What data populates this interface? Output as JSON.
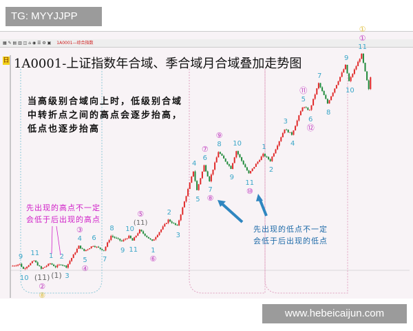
{
  "watermark": "TG: MYYJJPP",
  "site": "www.hebeicaijun.com",
  "toolbar": {
    "index_name": "1A0001—综合指数"
  },
  "badge": "日",
  "chart_data": {
    "type": "candlestick",
    "title": "1A0001-上证指数年合域、季合域月合域叠加走势图",
    "colors": {
      "up": "#e02828",
      "down": "#1f8a3a",
      "wave_label": "#3aa6c8",
      "circled_label": "#c03cc0",
      "paren_label": "#666666",
      "yearly_label": "#e0c040"
    },
    "points": [
      {
        "bar": 0,
        "value": 2034,
        "kind": "start"
      },
      {
        "bar": 5,
        "value": 2060,
        "kind": "high",
        "label": "9"
      },
      {
        "bar": 7,
        "value": 2000,
        "kind": "low",
        "label": "10"
      },
      {
        "bar": 13,
        "value": 2102,
        "kind": "high",
        "label": "11"
      },
      {
        "bar": 17,
        "value": 2000,
        "kind": "low",
        "sub": [
          "(11)",
          "②",
          "⑧"
        ]
      },
      {
        "bar": 22,
        "value": 2068,
        "kind": "high",
        "label": "1"
      },
      {
        "bar": 25,
        "value": 2026,
        "kind": "low",
        "sub": [
          "(1)"
        ]
      },
      {
        "bar": 28,
        "value": 2060,
        "kind": "high",
        "label": "2"
      },
      {
        "bar": 31,
        "value": 2026,
        "kind": "low",
        "label": "3"
      },
      {
        "bar": 38,
        "value": 2281,
        "kind": "high",
        "label": "4",
        "sub": [
          "③"
        ]
      },
      {
        "bar": 41,
        "value": 2221,
        "kind": "low",
        "label": "5",
        "sub": [
          "④"
        ]
      },
      {
        "bar": 46,
        "value": 2289,
        "kind": "high",
        "label": "6"
      },
      {
        "bar": 52,
        "value": 2230,
        "kind": "low",
        "label": "7"
      },
      {
        "bar": 56,
        "value": 2408,
        "kind": "high",
        "label": "8"
      },
      {
        "bar": 62,
        "value": 2340,
        "kind": "low",
        "label": "9"
      },
      {
        "bar": 66,
        "value": 2400,
        "kind": "high",
        "label": "10"
      },
      {
        "bar": 68,
        "value": 2349,
        "kind": "low",
        "label": "11"
      },
      {
        "bar": 72,
        "value": 2476,
        "kind": "high",
        "label": "(11)",
        "sub": [
          "⑤"
        ]
      },
      {
        "bar": 79,
        "value": 2340,
        "kind": "low",
        "label": "1",
        "sub": [
          "⑥"
        ]
      },
      {
        "bar": 88,
        "value": 2604,
        "kind": "high",
        "label": "2"
      },
      {
        "bar": 93,
        "value": 2527,
        "kind": "low",
        "label": "3"
      },
      {
        "bar": 102,
        "value": 3207,
        "kind": "high",
        "label": "4"
      },
      {
        "bar": 104,
        "value": 2969,
        "kind": "low",
        "label": "5"
      },
      {
        "bar": 108,
        "value": 3275,
        "kind": "high",
        "label": "6",
        "sub": [
          "⑦"
        ]
      },
      {
        "bar": 111,
        "value": 3088,
        "kind": "low",
        "label": "7",
        "sub": [
          "⑧"
        ]
      },
      {
        "bar": 116,
        "value": 3445,
        "kind": "high",
        "label": "8",
        "sub": [
          "⑨"
        ]
      },
      {
        "bar": 123,
        "value": 3241,
        "kind": "low",
        "label": "9"
      },
      {
        "bar": 126,
        "value": 3454,
        "kind": "high",
        "label": "10"
      },
      {
        "bar": 133,
        "value": 3173,
        "kind": "low",
        "label": "11",
        "sub": [
          "⑩"
        ]
      },
      {
        "bar": 141,
        "value": 3411,
        "kind": "high",
        "label": "1"
      },
      {
        "bar": 145,
        "value": 3335,
        "kind": "low",
        "label": "2"
      },
      {
        "bar": 153,
        "value": 3726,
        "kind": "high",
        "label": "3"
      },
      {
        "bar": 157,
        "value": 3658,
        "kind": "low",
        "label": "4"
      },
      {
        "bar": 163,
        "value": 3998,
        "kind": "high",
        "label": "5",
        "sub": [
          "⑪"
        ]
      },
      {
        "bar": 167,
        "value": 3955,
        "kind": "low",
        "label": "6",
        "sub": [
          "⑫"
        ]
      },
      {
        "bar": 172,
        "value": 4287,
        "kind": "high",
        "label": "7"
      },
      {
        "bar": 177,
        "value": 4040,
        "kind": "low",
        "label": "8"
      },
      {
        "bar": 187,
        "value": 4508,
        "kind": "high",
        "label": "9"
      },
      {
        "bar": 189,
        "value": 4312,
        "kind": "low",
        "label": "10"
      },
      {
        "bar": 196,
        "value": 4644,
        "kind": "high",
        "label": "11",
        "sub": [
          "①",
          "①"
        ]
      },
      {
        "bar": 200,
        "value": 4210,
        "kind": "low"
      },
      {
        "bar": 201,
        "value": 4363,
        "kind": "end"
      }
    ]
  },
  "annotations": {
    "main_note": [
      "当高级别合域向上时，低级别合域",
      "中转折点之间的高点会逐步抬高，",
      "低点也逐步抬高"
    ],
    "pink_note": [
      "先出现的高点不一定",
      "会低于后出现的高点"
    ],
    "blue_note": [
      "先出现的低点不一定",
      "会低于后出现的低点"
    ]
  }
}
